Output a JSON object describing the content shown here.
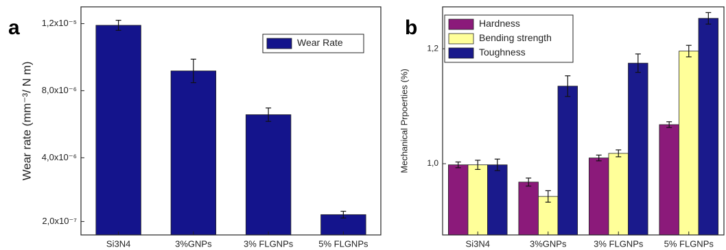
{
  "chart_data": [
    {
      "type": "bar",
      "panel_label": "a",
      "y_label": "Wear rate (mm⁻³/ N m)",
      "categories": [
        "Si3N4",
        "3%GNPs",
        "3% FLGNPs",
        "5% FLGNPs"
      ],
      "series": [
        {
          "name": "Wear Rate",
          "color": "#14148c",
          "values": [
            1.19e-05,
            9.18e-06,
            6.57e-06,
            6.1e-07
          ],
          "errors": [
            3e-07,
            7e-07,
            4e-07,
            2e-07
          ]
        }
      ],
      "ylim": [
        -6e-07,
        1.3e-05
      ],
      "yticks": [
        {
          "value": 2e-07,
          "label": "2,0x10⁻⁷"
        },
        {
          "value": 4e-06,
          "label": "4,0x10⁻⁶"
        },
        {
          "value": 8e-06,
          "label": "8,0x10⁻⁶"
        },
        {
          "value": 1.2e-05,
          "label": "1,2x10⁻⁵"
        }
      ],
      "legend": "upper right"
    },
    {
      "type": "bar",
      "panel_label": "b",
      "y_label": "Mechanical Prpoerties (%)",
      "categories": [
        "Si3N4",
        "3%GNPs",
        "3% FLGNPs",
        "5% FLGNPs"
      ],
      "series": [
        {
          "name": "Hardness",
          "color": "#8b1a7a",
          "values": [
            0.998,
            0.968,
            1.01,
            1.068
          ],
          "errors": [
            0.005,
            0.007,
            0.005,
            0.005
          ]
        },
        {
          "name": "Bending strength",
          "color": "#ffff99",
          "values": [
            0.998,
            0.943,
            1.018,
            1.196
          ],
          "errors": [
            0.008,
            0.01,
            0.006,
            0.01
          ]
        },
        {
          "name": "Toughness",
          "color": "#1a1a8c",
          "values": [
            0.998,
            1.135,
            1.175,
            1.253
          ],
          "errors": [
            0.01,
            0.018,
            0.016,
            0.01
          ]
        }
      ],
      "ylim": [
        0.876,
        1.273
      ],
      "yticks": [
        {
          "value": 1.0,
          "label": "1,0"
        },
        {
          "value": 1.2,
          "label": "1,2"
        }
      ],
      "legend": "upper left"
    }
  ]
}
